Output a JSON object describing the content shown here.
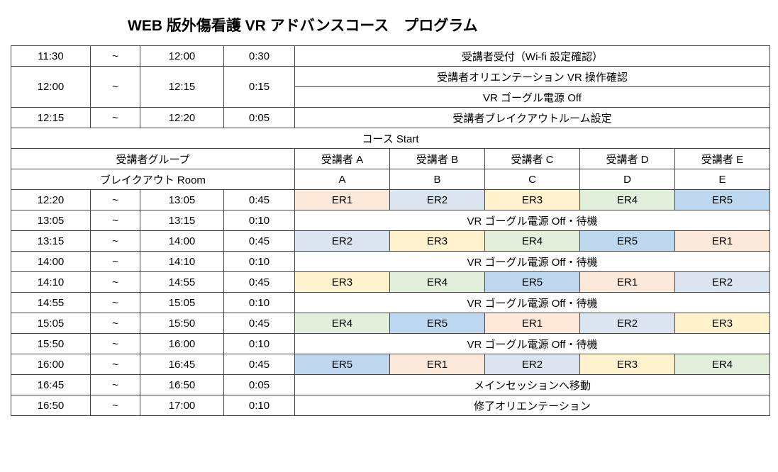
{
  "title": "WEB 版外傷看護 VR アドバンスコース　プログラム",
  "colors": {
    "er1": "#fde9d9",
    "er2": "#dbe5f1",
    "er3": "#fff2cc",
    "er4": "#e2efda",
    "er5": "#bdd7ee"
  },
  "col_widths": [
    "112px",
    "70px",
    "118px",
    "100px",
    "134px",
    "134px",
    "134px",
    "134px",
    "134px"
  ],
  "labels": {
    "er1": "ER1",
    "er2": "ER2",
    "er3": "ER3",
    "er4": "ER4",
    "er5": "ER5"
  },
  "rows": [
    {
      "type": "time",
      "start": "11:30",
      "tilde": "~",
      "end": "12:00",
      "dur": "0:30",
      "desc": "受講者受付（Wi-fi 設定確認）",
      "desc_span": 5
    },
    {
      "type": "time2",
      "start": "12:00",
      "tilde": "~",
      "end": "12:15",
      "dur": "0:15",
      "desc1": "受講者オリエンテーション VR 操作確認",
      "desc2": "VR ゴーグル電源 Off",
      "desc_span": 5
    },
    {
      "type": "time",
      "start": "12:15",
      "tilde": "~",
      "end": "12:20",
      "dur": "0:05",
      "desc": "受講者ブレイクアウトルーム設定",
      "desc_span": 5
    },
    {
      "type": "full",
      "text": "コース Start"
    },
    {
      "type": "header",
      "left": "受講者グループ",
      "cells": [
        "受講者 A",
        "受講者 B",
        "受講者 C",
        "受講者 D",
        "受講者 E"
      ]
    },
    {
      "type": "header",
      "left": "ブレイクアウト Room",
      "cells": [
        "A",
        "B",
        "C",
        "D",
        "E"
      ]
    },
    {
      "type": "er",
      "start": "12:20",
      "tilde": "~",
      "end": "13:05",
      "dur": "0:45",
      "cells": [
        "er1",
        "er2",
        "er3",
        "er4",
        "er5"
      ]
    },
    {
      "type": "time",
      "start": "13:05",
      "tilde": "~",
      "end": "13:15",
      "dur": "0:10",
      "desc": "VR ゴーグル電源 Off・待機",
      "desc_span": 5
    },
    {
      "type": "er",
      "start": "13:15",
      "tilde": "~",
      "end": "14:00",
      "dur": "0:45",
      "cells": [
        "er2",
        "er3",
        "er4",
        "er5",
        "er1"
      ]
    },
    {
      "type": "time",
      "start": "14:00",
      "tilde": "~",
      "end": "14:10",
      "dur": "0:10",
      "desc": "VR ゴーグル電源 Off・待機",
      "desc_span": 5
    },
    {
      "type": "er",
      "start": "14:10",
      "tilde": "~",
      "end": "14:55",
      "dur": "0:45",
      "cells": [
        "er3",
        "er4",
        "er5",
        "er1",
        "er2"
      ]
    },
    {
      "type": "time",
      "start": "14:55",
      "tilde": "~",
      "end": "15:05",
      "dur": "0:10",
      "desc": "VR ゴーグル電源 Off・待機",
      "desc_span": 5
    },
    {
      "type": "er",
      "start": "15:05",
      "tilde": "~",
      "end": "15:50",
      "dur": "0:45",
      "cells": [
        "er4",
        "er5",
        "er1",
        "er2",
        "er3"
      ]
    },
    {
      "type": "time",
      "start": "15:50",
      "tilde": "~",
      "end": "16:00",
      "dur": "0:10",
      "desc": "VR ゴーグル電源 Off・待機",
      "desc_span": 5
    },
    {
      "type": "er",
      "start": "16:00",
      "tilde": "~",
      "end": "16:45",
      "dur": "0:45",
      "cells": [
        "er5",
        "er1",
        "er2",
        "er3",
        "er4"
      ]
    },
    {
      "type": "time",
      "start": "16:45",
      "tilde": "~",
      "end": "16:50",
      "dur": "0:05",
      "desc": "メインセッションへ移動",
      "desc_span": 5
    },
    {
      "type": "time",
      "start": "16:50",
      "tilde": "~",
      "end": "17:00",
      "dur": "0:10",
      "desc": "修了オリエンテーション",
      "desc_span": 5
    }
  ]
}
